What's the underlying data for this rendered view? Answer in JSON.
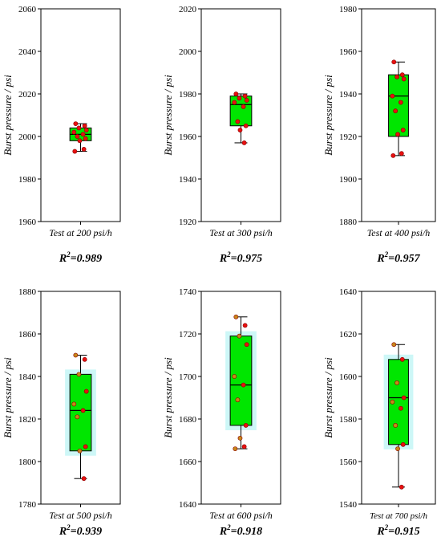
{
  "chart_data": [
    {
      "type": "box",
      "ylabel": "Burst pressure / psi",
      "category": "Test at 200 psi/h",
      "ylim": [
        1960,
        2060
      ],
      "yticks": [
        1960,
        1980,
        2000,
        2020,
        2040,
        2060
      ],
      "box": {
        "q1": 1998,
        "median": 2001,
        "q3": 2004,
        "whisker_low": 1993,
        "whisker_high": 2006
      },
      "points": [
        2006,
        2005,
        2004,
        2003,
        2002,
        2001,
        2000,
        1999,
        1998,
        1994,
        1993
      ],
      "r2": {
        "label": "R",
        "sup": "2",
        "value": "=0.989"
      }
    },
    {
      "type": "box",
      "ylabel": "Burst pressure / psi",
      "category": "Test at 300 psi/h",
      "ylim": [
        1920,
        2020
      ],
      "yticks": [
        1920,
        1940,
        1960,
        1980,
        2000,
        2020
      ],
      "box": {
        "q1": 1965,
        "median": 1975,
        "q3": 1979,
        "whisker_low": 1957,
        "whisker_high": 1980
      },
      "points": [
        1980,
        1979,
        1978,
        1977,
        1976,
        1974,
        1967,
        1965,
        1963,
        1957
      ],
      "r2": {
        "label": "R",
        "sup": "2",
        "value": "=0.975"
      }
    },
    {
      "type": "box",
      "ylabel": "Burst pressure / psi",
      "category": "Test at 400 psi/h",
      "ylim": [
        1880,
        1980
      ],
      "yticks": [
        1880,
        1900,
        1920,
        1940,
        1960,
        1980
      ],
      "box": {
        "q1": 1920,
        "median": 1939,
        "q3": 1949,
        "whisker_low": 1911,
        "whisker_high": 1955
      },
      "points": [
        1955,
        1949,
        1948,
        1947,
        1939,
        1936,
        1932,
        1923,
        1921,
        1912,
        1911
      ],
      "r2": {
        "label": "R",
        "sup": "2",
        "value": "=0.957"
      }
    },
    {
      "type": "box",
      "ylabel": "Burst pressure / psi",
      "category": "Test at 500 psi/h",
      "ylim": [
        1780,
        1880
      ],
      "yticks": [
        1780,
        1800,
        1820,
        1840,
        1860,
        1880
      ],
      "box": {
        "q1": 1805,
        "median": 1824,
        "q3": 1841,
        "whisker_low": 1792,
        "whisker_high": 1850
      },
      "points": [
        1850,
        1848,
        1841,
        1833,
        1827,
        1824,
        1821,
        1807,
        1805,
        1792
      ],
      "r2": {
        "label": "R",
        "sup": "2",
        "value": "=0.939"
      }
    },
    {
      "type": "box",
      "ylabel": "Burst pressure / psi",
      "category": "Test at 600 psi/h",
      "ylim": [
        1640,
        1740
      ],
      "yticks": [
        1640,
        1660,
        1680,
        1700,
        1720,
        1740
      ],
      "box": {
        "q1": 1677,
        "median": 1696,
        "q3": 1719,
        "whisker_low": 1666,
        "whisker_high": 1728
      },
      "points": [
        1728,
        1724,
        1719,
        1715,
        1700,
        1696,
        1689,
        1677,
        1671,
        1667,
        1666
      ],
      "r2": {
        "label": "R",
        "sup": "2",
        "value": "=0.918"
      }
    },
    {
      "type": "box",
      "ylabel": "Burst pressure / psi",
      "category": "Test at 700 psi/h",
      "ylim": [
        1540,
        1640
      ],
      "yticks": [
        1540,
        1560,
        1580,
        1600,
        1620,
        1640
      ],
      "box": {
        "q1": 1568,
        "median": 1590,
        "q3": 1608,
        "whisker_low": 1548,
        "whisker_high": 1615
      },
      "points": [
        1615,
        1608,
        1597,
        1590,
        1588,
        1585,
        1577,
        1568,
        1566,
        1548
      ],
      "r2": {
        "label": "R",
        "sup": "2",
        "value": "=0.915"
      }
    }
  ],
  "colors": {
    "box_fill": "#00e600",
    "halo": "#cdf7f7",
    "point_fill": "#e81010",
    "point_fill_alt": "#c8871a",
    "axis": "#000000"
  }
}
